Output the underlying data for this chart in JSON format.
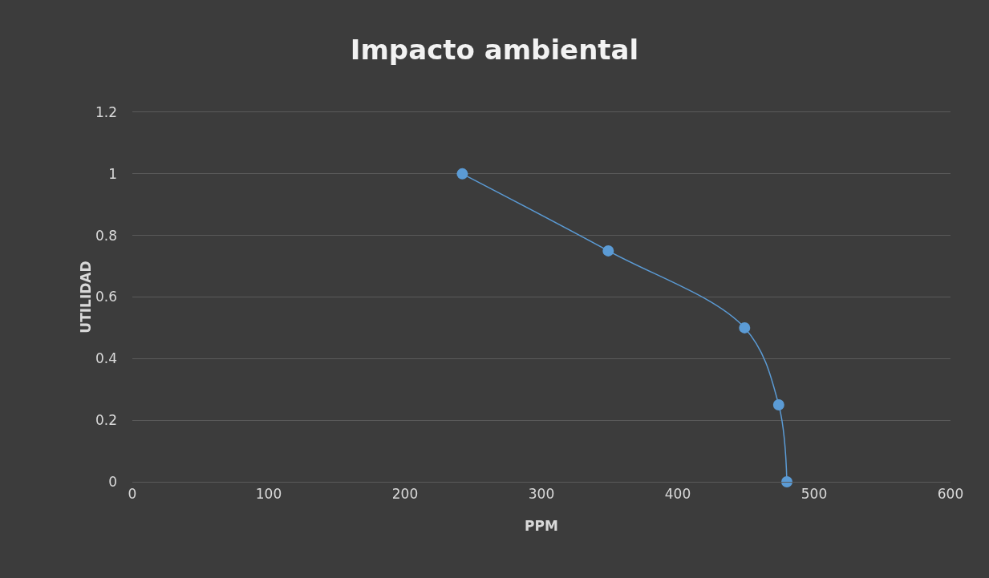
{
  "chart_data": {
    "type": "line",
    "title": "Impacto ambiental",
    "xlabel": "PPM",
    "ylabel": "UTILIDAD",
    "x": [
      242,
      349,
      449,
      474,
      480
    ],
    "series": [
      {
        "color": "#5b9bd5",
        "values": [
          1,
          0.75,
          0.5,
          0.25,
          0
        ]
      }
    ],
    "xlim": [
      0,
      600
    ],
    "xticks": [
      0,
      100,
      200,
      300,
      400,
      500,
      600
    ],
    "ylim": [
      0,
      1.2
    ],
    "yticks": [
      0,
      0.2,
      0.4,
      0.6,
      0.8,
      1,
      1.2
    ],
    "grid": "y",
    "marker": "circle",
    "line_style": "solid"
  }
}
